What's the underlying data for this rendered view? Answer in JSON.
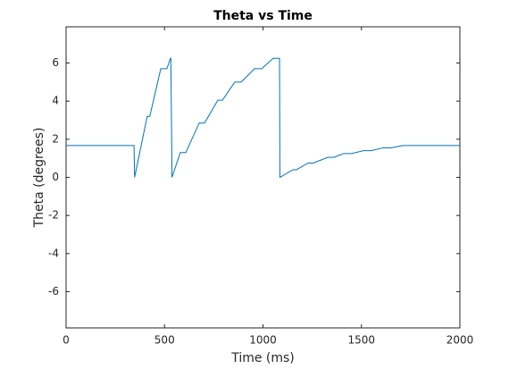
{
  "chart_data": {
    "type": "line",
    "title": "Theta vs Time",
    "x_label": "Time (ms)",
    "y_label": "Theta (degrees)",
    "x": [
      0,
      345,
      348,
      412,
      425,
      481,
      512,
      530,
      532,
      538,
      580,
      608,
      676,
      703,
      771,
      794,
      857,
      889,
      957,
      993,
      1052,
      1084,
      1086,
      1152,
      1170,
      1229,
      1255,
      1329,
      1360,
      1410,
      1450,
      1510,
      1550,
      1610,
      1650,
      1710,
      2000
    ],
    "series": [
      {
        "name": "theta",
        "color": "#0072bd",
        "values": [
          1.67,
          1.67,
          0,
          3.2,
          3.2,
          5.7,
          5.7,
          6.25,
          6.25,
          0,
          1.3,
          1.3,
          2.85,
          2.85,
          4.05,
          4.05,
          5.0,
          5.0,
          5.7,
          5.7,
          6.25,
          6.25,
          0,
          0.4,
          0.4,
          0.75,
          0.75,
          1.05,
          1.05,
          1.25,
          1.25,
          1.4,
          1.4,
          1.55,
          1.55,
          1.67,
          1.67
        ]
      }
    ],
    "xlim": [
      0,
      2000
    ],
    "xticks": [
      0,
      500,
      1000,
      1500,
      2000
    ],
    "ylim": [
      -7.9,
      7.9
    ],
    "yticks": [
      -6,
      -4,
      -2,
      0,
      2,
      4,
      6
    ]
  }
}
